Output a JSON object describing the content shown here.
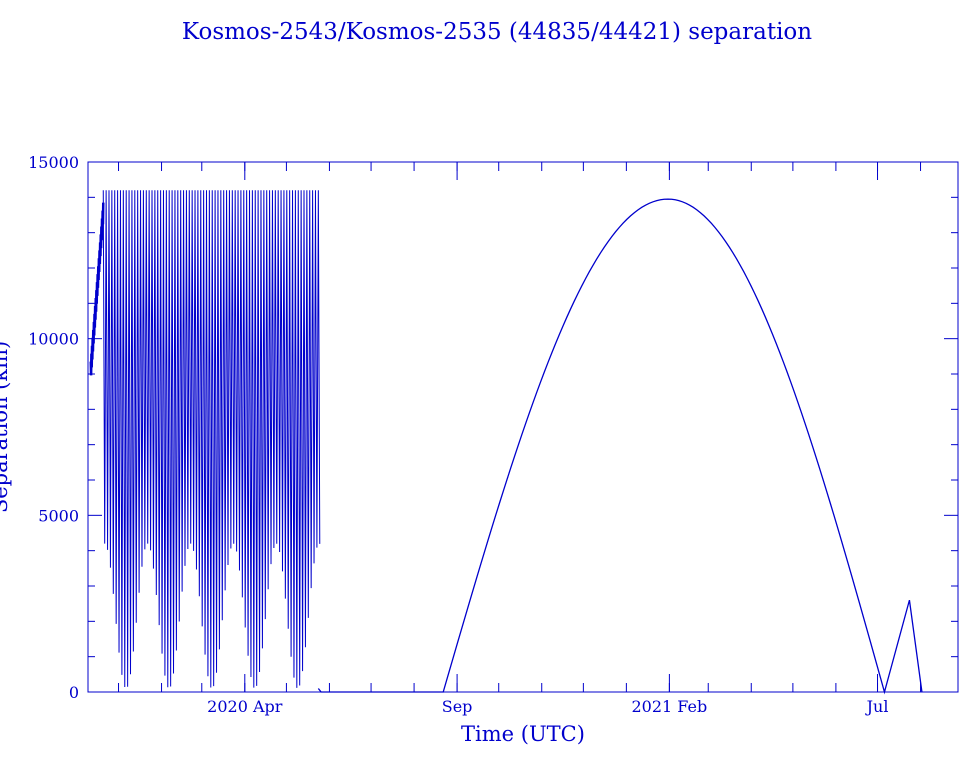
{
  "chart_data": {
    "type": "line",
    "title": "Kosmos-2543/Kosmos-2535 (44835/44421) separation",
    "xlabel": "Time (UTC)",
    "ylabel": "Separation (km)",
    "ylim": [
      0,
      15000
    ],
    "xlim": [
      "2019-12-10",
      "2021-08-28"
    ],
    "grid": false,
    "y_ticks": [
      0,
      5000,
      10000,
      15000
    ],
    "x_tick_labels": [
      {
        "date": "2020-04-01",
        "label": "2020 Apr"
      },
      {
        "date": "2020-09-01",
        "label": "Sep"
      },
      {
        "date": "2021-02-01",
        "label": "2021 Feb"
      },
      {
        "date": "2021-07-01",
        "label": "Jul"
      }
    ],
    "series": [
      {
        "segments": [
          {
            "kind": "ramp",
            "x": [
              "2019-12-12",
              "2019-12-21"
            ],
            "y": [
              9100,
              13600
            ]
          },
          {
            "kind": "oscillation",
            "x_start": "2019-12-21",
            "x_end": "2020-05-24",
            "y_max": 14200,
            "y_min_range": [
              100,
              4200
            ],
            "cycles": 75
          },
          {
            "kind": "line",
            "x": [
              "2020-05-24",
              "2020-05-26",
              "2020-06-30",
              "2020-08-18",
              "2020-08-22",
              "2021-01-31",
              "2021-07-06",
              "2021-07-24",
              "2021-08-02"
            ],
            "y": [
              100,
              0,
              0,
              0,
              0,
              13950,
              0,
              2600,
              0
            ]
          }
        ]
      }
    ]
  }
}
